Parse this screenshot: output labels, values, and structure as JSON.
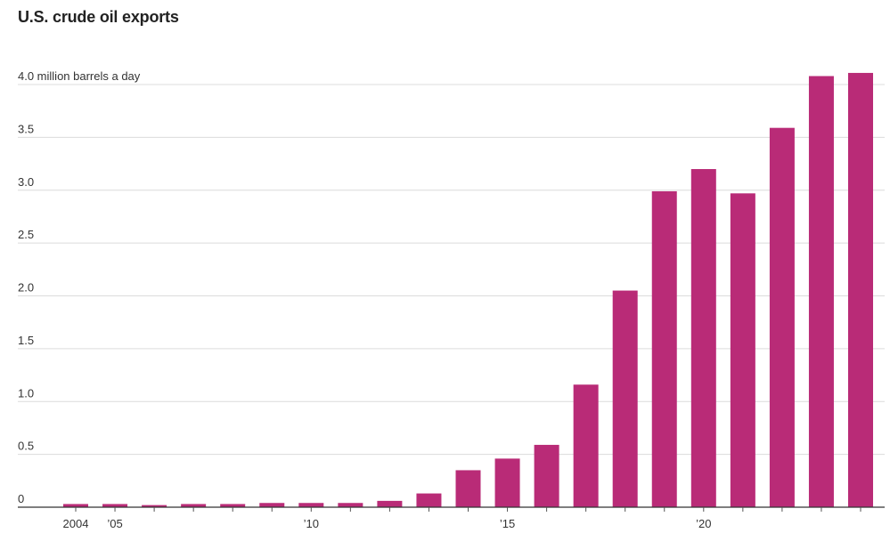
{
  "chart_data": {
    "type": "bar",
    "title": "U.S. crude oil exports",
    "unit_label": "4.0 million barrels a day",
    "categories": [
      "2004",
      "2005",
      "2006",
      "2007",
      "2008",
      "2009",
      "2010",
      "2011",
      "2012",
      "2013",
      "2014",
      "2015",
      "2016",
      "2017",
      "2018",
      "2019",
      "2020",
      "2021",
      "2022",
      "2023",
      "2024"
    ],
    "values": [
      0.03,
      0.03,
      0.02,
      0.03,
      0.03,
      0.04,
      0.04,
      0.04,
      0.06,
      0.13,
      0.35,
      0.46,
      0.59,
      1.16,
      2.05,
      2.99,
      3.2,
      2.97,
      3.59,
      4.08,
      4.11
    ],
    "ylim": [
      0,
      4.0
    ],
    "yticks": [
      {
        "value": 0,
        "label": "0"
      },
      {
        "value": 0.5,
        "label": "0.5"
      },
      {
        "value": 1.0,
        "label": "1.0"
      },
      {
        "value": 1.5,
        "label": "1.5"
      },
      {
        "value": 2.0,
        "label": "2.0"
      },
      {
        "value": 2.5,
        "label": "2.5"
      },
      {
        "value": 3.0,
        "label": "3.0"
      },
      {
        "value": 3.5,
        "label": "3.5"
      }
    ],
    "xticks": [
      {
        "category": "2004",
        "label": "2004"
      },
      {
        "category": "2005",
        "label": "’05"
      },
      {
        "category": "2010",
        "label": "’10"
      },
      {
        "category": "2015",
        "label": "’15"
      },
      {
        "category": "2020",
        "label": "’20"
      }
    ],
    "grid": true,
    "legend": "none",
    "bar_color": "#b92b77"
  }
}
